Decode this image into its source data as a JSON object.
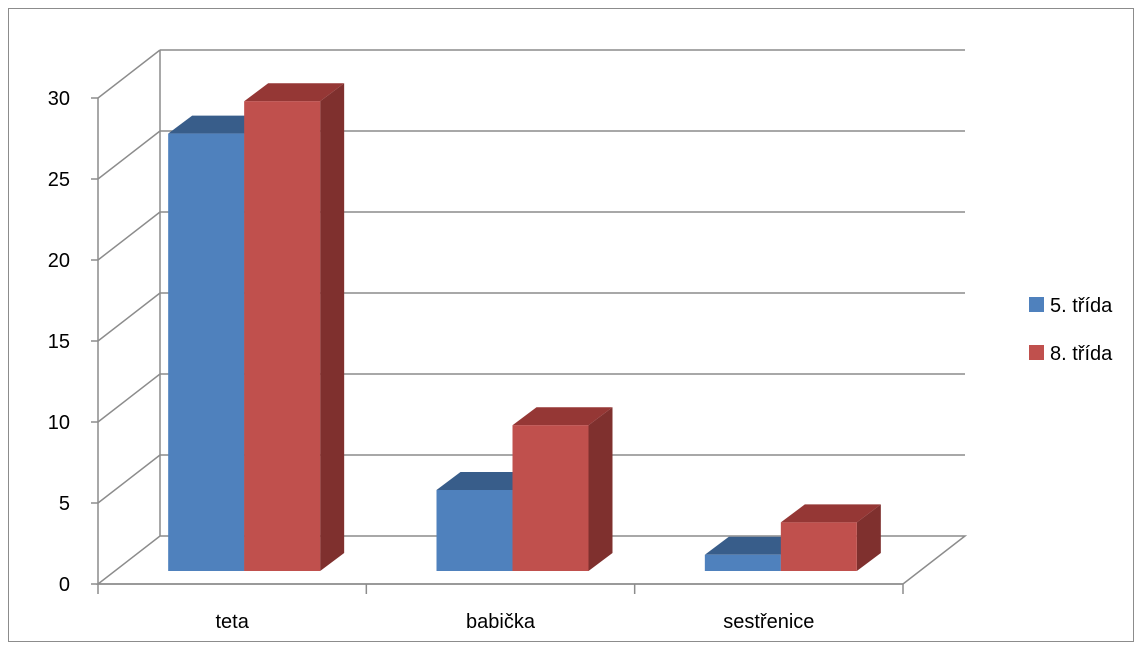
{
  "chart_data": {
    "type": "bar",
    "style": "3d-clustered-column",
    "categories": [
      "teta",
      "babička",
      "sestřenice"
    ],
    "series": [
      {
        "name": "5. třída",
        "values": [
          27,
          5,
          1
        ],
        "color": "#4f81bd",
        "top_color": "#385d8a",
        "side_color": "#375a85"
      },
      {
        "name": "8. třída",
        "values": [
          29,
          9,
          3
        ],
        "color": "#c0504d",
        "top_color": "#953735",
        "side_color": "#7f302e"
      }
    ],
    "ylim": [
      0,
      30
    ],
    "yticks": [
      0,
      5,
      10,
      15,
      20,
      25,
      30
    ],
    "grid": true,
    "legend": "right",
    "title": "",
    "xlabel": "",
    "ylabel": ""
  }
}
